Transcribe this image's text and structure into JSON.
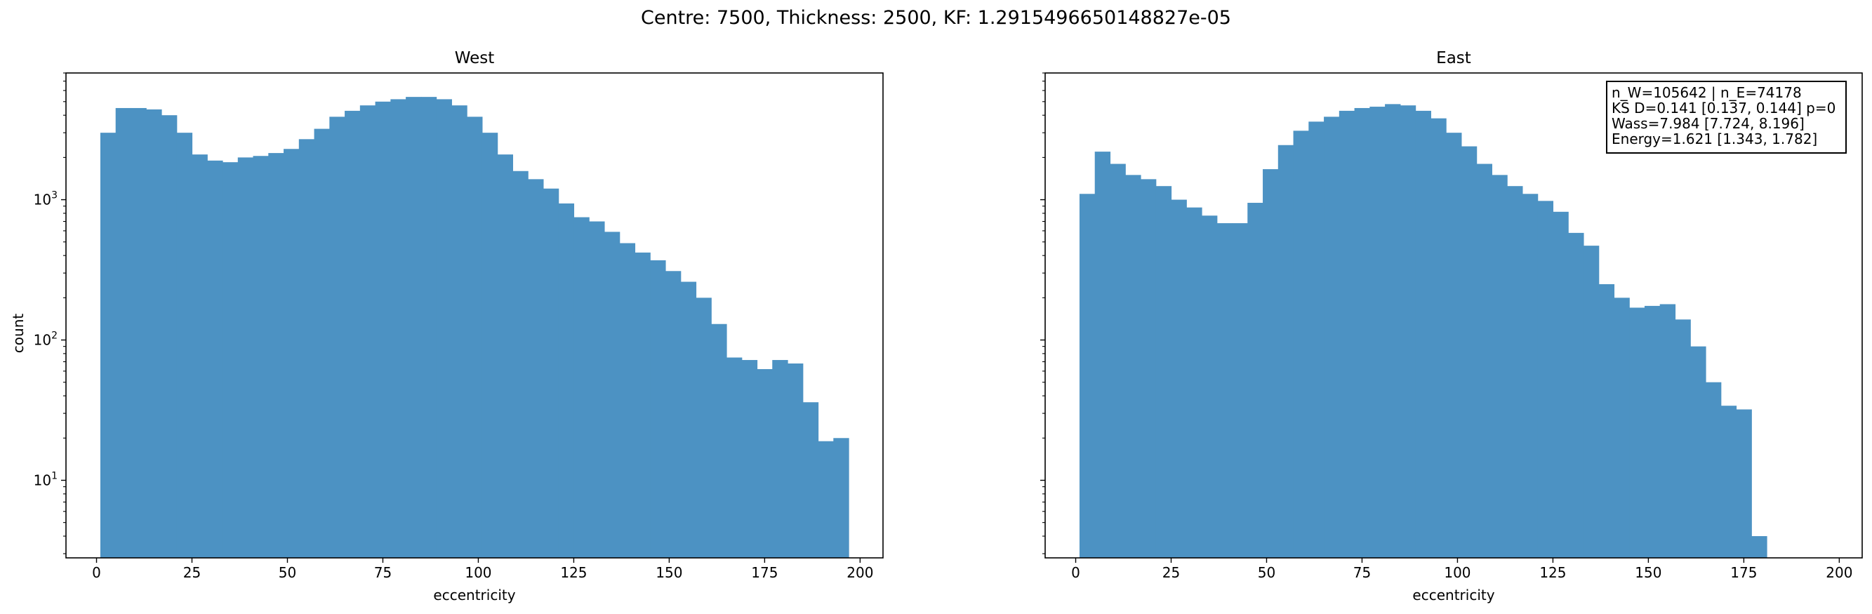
{
  "suptitle": "Centre: 7500, Thickness: 2500, KF: 1.2915496650148827e-05",
  "bar_color": "#4C92C3",
  "ylabel": "count",
  "stats_box": [
    "n_W=105642 | n_E=74178",
    "KS D=0.141 [0.137, 0.144]  p=0",
    "Wass=7.984 [7.724, 8.196]",
    "Energy=1.621 [1.343, 1.782]"
  ],
  "chart_data": [
    {
      "type": "bar",
      "title": "West",
      "xlabel": "eccentricity",
      "ylabel": "count",
      "y_scale": "log",
      "xlim": [
        -8,
        206
      ],
      "ylim": [
        2.8,
        8000
      ],
      "x_ticks": [
        0,
        25,
        50,
        75,
        100,
        125,
        150,
        175,
        200
      ],
      "y_ticks": [
        10,
        100,
        1000
      ],
      "y_tick_labels": [
        "10^1",
        "10^2",
        "10^3"
      ],
      "bin_edges": [
        1,
        5,
        9,
        13,
        17,
        21,
        25,
        29,
        33,
        37,
        41,
        45,
        49,
        53,
        57,
        61,
        65,
        69,
        73,
        77,
        81,
        85,
        89,
        93,
        97,
        101,
        105,
        109,
        113,
        117,
        121,
        125,
        129,
        133,
        137,
        141,
        145,
        149,
        153,
        157,
        161,
        165,
        169,
        173,
        177,
        181,
        185,
        189,
        193,
        197
      ],
      "values": [
        3000,
        4500,
        4500,
        4400,
        4000,
        3000,
        2100,
        1900,
        1850,
        2000,
        2050,
        2150,
        2300,
        2700,
        3200,
        3900,
        4300,
        4700,
        5000,
        5200,
        5400,
        5400,
        5200,
        4700,
        3900,
        3000,
        2100,
        1600,
        1400,
        1200,
        940,
        750,
        700,
        590,
        490,
        420,
        370,
        310,
        260,
        200,
        130,
        75,
        72,
        62,
        72,
        68,
        36,
        19,
        20
      ]
    },
    {
      "type": "bar",
      "title": "East",
      "xlabel": "eccentricity",
      "y_scale": "log",
      "xlim": [
        -8,
        206
      ],
      "ylim": [
        2.8,
        8000
      ],
      "x_ticks": [
        0,
        25,
        50,
        75,
        100,
        125,
        150,
        175,
        200
      ],
      "bin_edges": [
        1,
        5,
        9,
        13,
        17,
        21,
        25,
        29,
        33,
        37,
        41,
        45,
        49,
        53,
        57,
        61,
        65,
        69,
        73,
        77,
        81,
        85,
        89,
        93,
        97,
        101,
        105,
        109,
        113,
        117,
        121,
        125,
        129,
        133,
        137,
        141,
        145,
        149,
        153,
        157,
        161,
        165,
        169,
        173,
        177,
        181
      ],
      "values": [
        1100,
        2200,
        1800,
        1500,
        1400,
        1250,
        1000,
        880,
        770,
        680,
        680,
        950,
        1650,
        2450,
        3100,
        3600,
        3900,
        4300,
        4500,
        4600,
        4800,
        4700,
        4300,
        3800,
        3000,
        2400,
        1800,
        1500,
        1250,
        1100,
        980,
        820,
        580,
        470,
        250,
        200,
        170,
        175,
        180,
        140,
        90,
        50,
        34,
        32,
        4
      ]
    }
  ]
}
